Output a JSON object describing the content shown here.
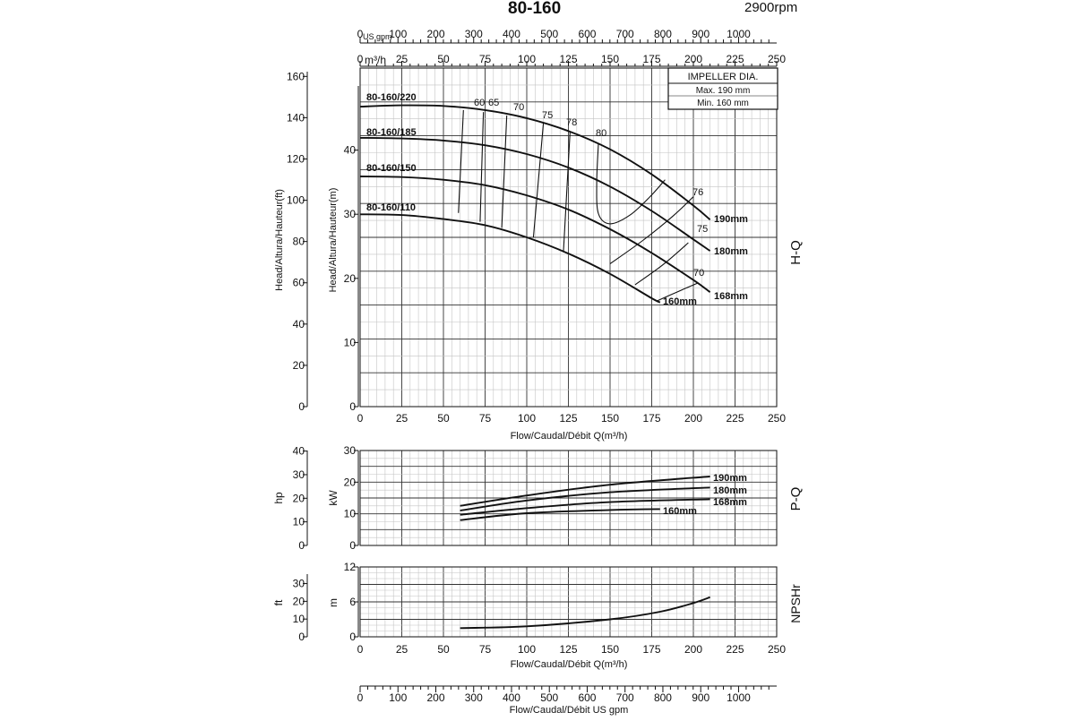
{
  "title": "80-160",
  "speed": "2900rpm",
  "impeller_box": {
    "title": "IMPELLER DIA.",
    "max": "Max. 190 mm",
    "min": "Min.  160 mm"
  },
  "top_axes": {
    "gpm_unit": "US gpm",
    "gpm_ticks": [
      "0",
      "100",
      "200",
      "300",
      "400",
      "500",
      "600",
      "700",
      "800",
      "900",
      "1000"
    ],
    "m3h_unit": "m³/h",
    "m3h_ticks": [
      "0",
      "25",
      "50",
      "75",
      "100",
      "125",
      "150",
      "175",
      "200",
      "225",
      "250"
    ]
  },
  "hq_panel": {
    "side_label": "H-Q",
    "ylabel_m": "Head/Altura/Hauteur(m)",
    "ylabel_ft": "Head/Altura/Hauteur(ft)",
    "yticks_m": [
      "0",
      "10",
      "20",
      "30",
      "40"
    ],
    "yticks_ft": [
      "0",
      "20",
      "40",
      "60",
      "80",
      "100",
      "120",
      "140",
      "160"
    ],
    "xticks": [
      "0",
      "25",
      "50",
      "75",
      "100",
      "125",
      "150",
      "175",
      "200",
      "225",
      "250"
    ],
    "xlabel": "Flow/Caudal/Débit Q(m³/h)"
  },
  "pq_panel": {
    "side_label": "P-Q",
    "ylabel_kw": "kW",
    "ylabel_hp": "hp",
    "yticks_kw": [
      "0",
      "10",
      "20",
      "30"
    ],
    "yticks_hp": [
      "0",
      "10",
      "20",
      "30",
      "40"
    ]
  },
  "npsh_panel": {
    "side_label": "NPSHr",
    "ylabel_m": "m",
    "ylabel_ft": "ft",
    "yticks_m": [
      "0",
      "6",
      "12"
    ],
    "yticks_ft": [
      "0",
      "10",
      "20",
      "30"
    ],
    "xticks": [
      "0",
      "25",
      "50",
      "75",
      "100",
      "125",
      "150",
      "175",
      "200",
      "225",
      "250"
    ],
    "xlabel": "Flow/Caudal/Débit Q(m³/h)"
  },
  "bottom_axis": {
    "ticks": [
      "0",
      "100",
      "200",
      "300",
      "400",
      "500",
      "600",
      "700",
      "800",
      "900",
      "1000"
    ],
    "xlabel": "Flow/Caudal/Débit  US gpm"
  },
  "chart_data": [
    {
      "type": "line",
      "title": "H-Q",
      "xlabel": "Flow/Caudal/Débit Q(m³/h)",
      "ylabel": "Head/Altura/Hauteur(m)",
      "xlim": [
        0,
        250
      ],
      "ylim": [
        0,
        50
      ],
      "series": [
        {
          "name": "80-160/220",
          "tag": "190mm",
          "x": [
            0,
            25,
            50,
            75,
            100,
            125,
            150,
            175,
            200,
            210
          ],
          "y": [
            44.3,
            44.5,
            44.4,
            43.8,
            42.6,
            40.7,
            38.0,
            34.3,
            29.7,
            27.6
          ]
        },
        {
          "name": "80-160/185",
          "tag": "180mm",
          "x": [
            0,
            25,
            50,
            75,
            100,
            125,
            150,
            175,
            200,
            210
          ],
          "y": [
            39.7,
            39.6,
            39.3,
            38.6,
            37.3,
            35.3,
            32.5,
            28.9,
            24.7,
            23.0
          ]
        },
        {
          "name": "80-160/150",
          "tag": "168mm",
          "x": [
            0,
            25,
            50,
            75,
            100,
            125,
            150,
            175,
            200,
            210
          ],
          "y": [
            34.0,
            33.9,
            33.5,
            32.7,
            31.2,
            29.1,
            26.2,
            22.7,
            18.7,
            16.9
          ]
        },
        {
          "name": "80-160/110",
          "tag": "160mm",
          "x": [
            0,
            25,
            50,
            75,
            100,
            125,
            150,
            175,
            180
          ],
          "y": [
            28.4,
            28.3,
            27.7,
            26.8,
            25.0,
            22.6,
            19.6,
            16.0,
            15.4
          ]
        }
      ],
      "efficiency_labels": [
        "60",
        "65",
        "70",
        "75",
        "78",
        "80",
        "76",
        "75",
        "70"
      ]
    },
    {
      "type": "line",
      "title": "P-Q",
      "xlabel": "Flow/Caudal/Débit Q(m³/h)",
      "ylabel": "kW",
      "xlim": [
        0,
        250
      ],
      "ylim": [
        0,
        30
      ],
      "series": [
        {
          "name": "190mm",
          "x": [
            60,
            100,
            150,
            210
          ],
          "y": [
            12.5,
            15.8,
            19.2,
            21.8
          ]
        },
        {
          "name": "180mm",
          "x": [
            60,
            100,
            150,
            210
          ],
          "y": [
            11.0,
            14.2,
            16.8,
            18.3
          ]
        },
        {
          "name": "168mm",
          "x": [
            60,
            100,
            150,
            210
          ],
          "y": [
            9.7,
            11.8,
            13.7,
            14.6
          ]
        },
        {
          "name": "160mm",
          "x": [
            60,
            100,
            150,
            180
          ],
          "y": [
            8.0,
            10.2,
            11.2,
            11.5
          ]
        }
      ]
    },
    {
      "type": "line",
      "title": "NPSHr",
      "xlabel": "Flow/Caudal/Débit Q(m³/h)",
      "ylabel": "m",
      "xlim": [
        0,
        250
      ],
      "ylim": [
        0,
        12
      ],
      "series": [
        {
          "name": "NPSHr",
          "x": [
            60,
            100,
            150,
            180,
            200,
            210
          ],
          "y": [
            1.5,
            1.8,
            3.0,
            4.3,
            5.8,
            6.8
          ]
        }
      ]
    }
  ]
}
